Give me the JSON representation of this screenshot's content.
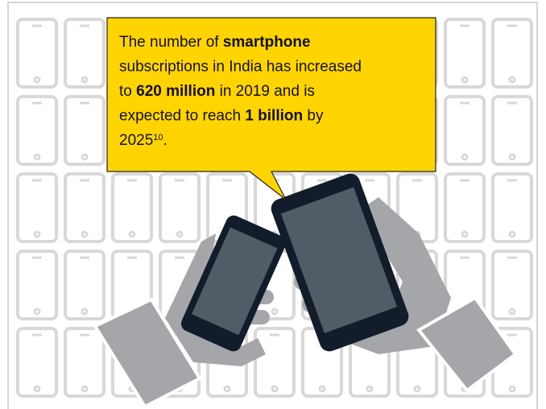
{
  "callout": {
    "lines": [
      [
        {
          "text": "The number of ",
          "bold": false
        },
        {
          "text": "smartphone",
          "bold": true
        }
      ],
      [
        {
          "text": "subscriptions in India has increased",
          "bold": false
        }
      ],
      [
        {
          "text": "to ",
          "bold": false
        },
        {
          "text": "620 million",
          "bold": true
        },
        {
          "text": " in 2019 and is",
          "bold": false
        }
      ],
      [
        {
          "text": "expected to reach ",
          "bold": false
        },
        {
          "text": "1 billion",
          "bold": true
        },
        {
          "text": " by",
          "bold": false
        }
      ],
      [
        {
          "text": "2025",
          "bold": false
        },
        {
          "text": "10",
          "bold": false,
          "sup": true
        },
        {
          "text": ".",
          "bold": false
        }
      ]
    ]
  }
}
